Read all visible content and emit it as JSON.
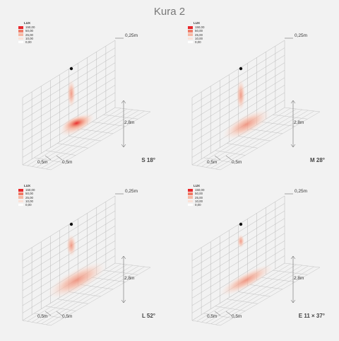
{
  "title": "Kura 2",
  "legend": {
    "header": "LUX",
    "items": [
      {
        "label": "150,00",
        "color": "#e8262a"
      },
      {
        "label": "50,00",
        "color": "#ef7b67"
      },
      {
        "label": "25,00",
        "color": "#f6b8a4"
      },
      {
        "label": "10,00",
        "color": "#fbe2d8"
      },
      {
        "label": "0,00",
        "color": "#ffffff"
      }
    ]
  },
  "dimensions": {
    "offset": "0,25m",
    "height": "2,8m",
    "grid_left": "0,5m",
    "grid_right": "0,5m"
  },
  "panels": [
    {
      "beam": "S 18°",
      "wall": {
        "top": 0.25,
        "bottom": 0.57,
        "w": 0.22
      },
      "floor": {
        "w": 0.37,
        "h": 0.25,
        "core": 0.6
      }
    },
    {
      "beam": "M 28°",
      "wall": {
        "top": 0.25,
        "bottom": 0.62,
        "w": 0.25
      },
      "floor": {
        "w": 0.62,
        "h": 0.34,
        "core": 0.0
      }
    },
    {
      "beam": "L 52°",
      "wall": {
        "top": 0.2,
        "bottom": 0.45,
        "w": 0.3
      },
      "floor": {
        "w": 0.85,
        "h": 0.42,
        "core": 0.0
      }
    },
    {
      "beam": "E 11 × 37°",
      "wall": {
        "top": 0.2,
        "bottom": 0.3,
        "w": 0.17
      },
      "floor": {
        "w": 0.75,
        "h": 0.22,
        "core": 0.0
      }
    }
  ]
}
